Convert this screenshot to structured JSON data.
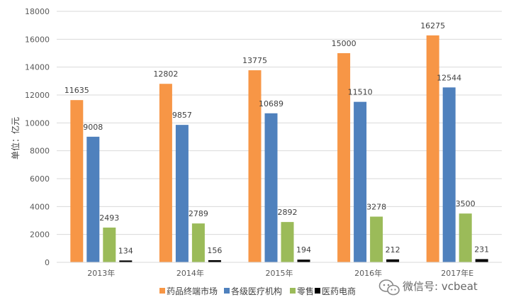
{
  "chart_data": {
    "type": "bar",
    "title": "",
    "xlabel": "",
    "ylabel": "单位：亿元",
    "ylim": [
      0,
      18000
    ],
    "yticks": [
      0,
      2000,
      4000,
      6000,
      8000,
      10000,
      12000,
      14000,
      16000,
      18000
    ],
    "grid": true,
    "legend": "bottom",
    "categories": [
      "2013年",
      "2014年",
      "2015年",
      "2016年",
      "2017年E"
    ],
    "series": [
      {
        "name": "药品终端市场",
        "color": "#F79646",
        "values": [
          11635,
          12802,
          13775,
          15000,
          16275
        ]
      },
      {
        "name": "各级医疗机构",
        "color": "#4F81BD",
        "values": [
          9008,
          9857,
          10689,
          11510,
          12544
        ]
      },
      {
        "name": "零售",
        "color": "#9BBB59",
        "values": [
          2493,
          2789,
          2892,
          3278,
          3500
        ]
      },
      {
        "name": "医药电商",
        "color": "#000000",
        "values": [
          134,
          156,
          194,
          212,
          231
        ]
      }
    ]
  },
  "watermark": {
    "text": "微信号: vcbeat",
    "icon": "wechat-icon"
  }
}
